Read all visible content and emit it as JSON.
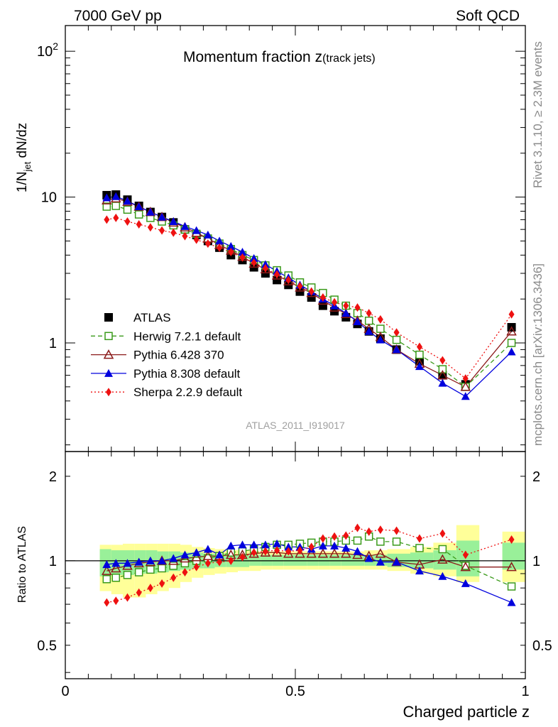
{
  "header": {
    "left": "7000 GeV pp",
    "right": "Soft QCD"
  },
  "side_labels": {
    "rivet": "Rivet 3.1.10, ≥ 2.3M events",
    "mcplots": "mcplots.cern.ch [arXiv:1306.3436]"
  },
  "chart_data": [
    {
      "type": "scatter",
      "panel": "main",
      "title": "Momentum fraction z(track jets)",
      "watermark": "ATLAS_2011_I919017",
      "ylabel": "1/N_jet dN/dz",
      "ylim": [
        0.18,
        150
      ],
      "yscale": "log",
      "xlim": [
        0,
        1
      ],
      "legend_position": "bottom-left",
      "yticks": [
        {
          "v": 1,
          "label": "1"
        },
        {
          "v": 10,
          "label": "10"
        },
        {
          "v": 100,
          "label": "10^2"
        }
      ],
      "x": [
        0.09,
        0.11,
        0.135,
        0.16,
        0.185,
        0.21,
        0.235,
        0.26,
        0.285,
        0.31,
        0.335,
        0.36,
        0.385,
        0.41,
        0.435,
        0.46,
        0.485,
        0.51,
        0.535,
        0.56,
        0.585,
        0.61,
        0.635,
        0.66,
        0.685,
        0.72,
        0.77,
        0.82,
        0.87,
        0.97
      ],
      "series": [
        {
          "name": "ATLAS",
          "color": "#000000",
          "marker": "square-filled",
          "line": "none",
          "values": [
            10.3,
            10.4,
            9.6,
            8.7,
            7.9,
            7.3,
            6.7,
            6.0,
            5.5,
            5.0,
            4.5,
            4.0,
            3.7,
            3.3,
            3.0,
            2.7,
            2.5,
            2.25,
            2.05,
            1.8,
            1.65,
            1.5,
            1.35,
            1.2,
            1.07,
            0.9,
            0.75,
            0.6,
            0.52,
            1.28
          ]
        },
        {
          "name": "Herwig 7.2.1 default",
          "color": "#3a9a1a",
          "marker": "square-open",
          "line": "dashed",
          "values": [
            8.6,
            8.7,
            8.2,
            7.6,
            7.2,
            6.8,
            6.4,
            6.0,
            5.6,
            5.2,
            4.8,
            4.4,
            4.0,
            3.7,
            3.4,
            3.15,
            2.9,
            2.6,
            2.4,
            2.2,
            1.98,
            1.8,
            1.6,
            1.42,
            1.25,
            1.05,
            0.83,
            0.66,
            0.5,
            1.0
          ]
        },
        {
          "name": "Pythia 6.428 370",
          "color": "#8b1a1a",
          "marker": "triangle-open",
          "line": "solid",
          "values": [
            9.5,
            9.8,
            9.3,
            8.6,
            7.9,
            7.3,
            6.7,
            6.2,
            5.7,
            5.2,
            4.7,
            4.3,
            3.9,
            3.5,
            3.2,
            2.9,
            2.65,
            2.4,
            2.2,
            1.95,
            1.75,
            1.58,
            1.42,
            1.25,
            1.1,
            0.9,
            0.72,
            0.6,
            0.5,
            1.2
          ]
        },
        {
          "name": "Pythia 8.308 default",
          "color": "#0000dd",
          "marker": "triangle-filled",
          "line": "solid",
          "values": [
            9.9,
            10.1,
            9.4,
            8.6,
            7.9,
            7.3,
            6.8,
            6.3,
            5.9,
            5.5,
            5.0,
            4.6,
            4.2,
            3.8,
            3.45,
            3.1,
            2.8,
            2.5,
            2.25,
            2.0,
            1.8,
            1.6,
            1.4,
            1.2,
            1.05,
            0.9,
            0.69,
            0.53,
            0.43,
            0.87
          ]
        },
        {
          "name": "Sherpa 2.2.9 default",
          "color": "#ee1111",
          "marker": "diamond-filled",
          "line": "dotted",
          "values": [
            7.0,
            7.2,
            6.8,
            6.5,
            6.2,
            5.9,
            5.7,
            5.4,
            5.1,
            4.8,
            4.5,
            4.2,
            3.85,
            3.55,
            3.25,
            2.95,
            2.7,
            2.45,
            2.25,
            2.05,
            1.9,
            1.8,
            1.75,
            1.6,
            1.45,
            1.18,
            0.94,
            0.76,
            0.57,
            1.57
          ]
        }
      ]
    },
    {
      "type": "scatter",
      "panel": "ratio",
      "ylabel": "Ratio to ATLAS",
      "xlabel": "Charged particle z",
      "ylim": [
        0.38,
        2.45
      ],
      "yscale": "log",
      "xlim": [
        0,
        1
      ],
      "yticks": [
        {
          "v": 0.5,
          "label": "0.5"
        },
        {
          "v": 1,
          "label": "1"
        },
        {
          "v": 2,
          "label": "2"
        }
      ],
      "xticks": [
        {
          "v": 0,
          "label": "0"
        },
        {
          "v": 0.5,
          "label": "0.5"
        },
        {
          "v": 1,
          "label": "1"
        }
      ],
      "bands": [
        {
          "x0": 0.075,
          "x1": 0.1,
          "g": [
            0.88,
            1.1
          ],
          "y": [
            0.78,
            1.14
          ]
        },
        {
          "x0": 0.1,
          "x1": 0.125,
          "g": [
            0.89,
            1.09
          ],
          "y": [
            0.76,
            1.14
          ]
        },
        {
          "x0": 0.125,
          "x1": 0.15,
          "g": [
            0.89,
            1.09
          ],
          "y": [
            0.74,
            1.15
          ]
        },
        {
          "x0": 0.15,
          "x1": 0.175,
          "g": [
            0.9,
            1.09
          ],
          "y": [
            0.74,
            1.15
          ]
        },
        {
          "x0": 0.175,
          "x1": 0.2,
          "g": [
            0.9,
            1.09
          ],
          "y": [
            0.76,
            1.15
          ]
        },
        {
          "x0": 0.2,
          "x1": 0.225,
          "g": [
            0.91,
            1.08
          ],
          "y": [
            0.78,
            1.15
          ]
        },
        {
          "x0": 0.225,
          "x1": 0.25,
          "g": [
            0.92,
            1.08
          ],
          "y": [
            0.8,
            1.15
          ]
        },
        {
          "x0": 0.25,
          "x1": 0.275,
          "g": [
            0.93,
            1.07
          ],
          "y": [
            0.84,
            1.14
          ]
        },
        {
          "x0": 0.275,
          "x1": 0.3,
          "g": [
            0.94,
            1.07
          ],
          "y": [
            0.87,
            1.12
          ]
        },
        {
          "x0": 0.3,
          "x1": 0.325,
          "g": [
            0.94,
            1.06
          ],
          "y": [
            0.89,
            1.11
          ]
        },
        {
          "x0": 0.325,
          "x1": 0.35,
          "g": [
            0.95,
            1.06
          ],
          "y": [
            0.9,
            1.1
          ]
        },
        {
          "x0": 0.35,
          "x1": 0.375,
          "g": [
            0.95,
            1.05
          ],
          "y": [
            0.91,
            1.09
          ]
        },
        {
          "x0": 0.375,
          "x1": 0.4,
          "g": [
            0.95,
            1.05
          ],
          "y": [
            0.92,
            1.09
          ]
        },
        {
          "x0": 0.4,
          "x1": 0.425,
          "g": [
            0.96,
            1.05
          ],
          "y": [
            0.92,
            1.08
          ]
        },
        {
          "x0": 0.425,
          "x1": 0.45,
          "g": [
            0.96,
            1.05
          ],
          "y": [
            0.93,
            1.08
          ]
        },
        {
          "x0": 0.45,
          "x1": 0.475,
          "g": [
            0.96,
            1.05
          ],
          "y": [
            0.93,
            1.08
          ]
        },
        {
          "x0": 0.475,
          "x1": 0.5,
          "g": [
            0.96,
            1.05
          ],
          "y": [
            0.93,
            1.08
          ]
        },
        {
          "x0": 0.5,
          "x1": 0.525,
          "g": [
            0.96,
            1.05
          ],
          "y": [
            0.93,
            1.08
          ]
        },
        {
          "x0": 0.525,
          "x1": 0.55,
          "g": [
            0.96,
            1.05
          ],
          "y": [
            0.93,
            1.08
          ]
        },
        {
          "x0": 0.55,
          "x1": 0.575,
          "g": [
            0.96,
            1.05
          ],
          "y": [
            0.93,
            1.08
          ]
        },
        {
          "x0": 0.575,
          "x1": 0.6,
          "g": [
            0.96,
            1.05
          ],
          "y": [
            0.93,
            1.08
          ]
        },
        {
          "x0": 0.6,
          "x1": 0.625,
          "g": [
            0.96,
            1.05
          ],
          "y": [
            0.93,
            1.08
          ]
        },
        {
          "x0": 0.625,
          "x1": 0.65,
          "g": [
            0.96,
            1.05
          ],
          "y": [
            0.93,
            1.08
          ]
        },
        {
          "x0": 0.65,
          "x1": 0.675,
          "g": [
            0.96,
            1.05
          ],
          "y": [
            0.93,
            1.09
          ]
        },
        {
          "x0": 0.675,
          "x1": 0.7,
          "g": [
            0.96,
            1.05
          ],
          "y": [
            0.93,
            1.09
          ]
        },
        {
          "x0": 0.7,
          "x1": 0.75,
          "g": [
            0.95,
            1.06
          ],
          "y": [
            0.92,
            1.1
          ]
        },
        {
          "x0": 0.75,
          "x1": 0.8,
          "g": [
            0.94,
            1.07
          ],
          "y": [
            0.9,
            1.12
          ]
        },
        {
          "x0": 0.8,
          "x1": 0.85,
          "g": [
            0.93,
            1.09
          ],
          "y": [
            0.88,
            1.16
          ]
        },
        {
          "x0": 0.85,
          "x1": 0.9,
          "g": [
            0.88,
            1.18
          ],
          "y": [
            0.84,
            1.34
          ]
        },
        {
          "x0": 0.95,
          "x1": 1.0,
          "g": [
            0.93,
            1.16
          ],
          "y": [
            0.84,
            1.27
          ]
        }
      ],
      "series": [
        {
          "name": "Herwig 7.2.1 default",
          "color": "#3a9a1a",
          "marker": "square-open",
          "line": "dashed",
          "values": [
            0.86,
            0.87,
            0.89,
            0.91,
            0.93,
            0.94,
            0.96,
            0.98,
            1.0,
            1.02,
            1.04,
            1.07,
            1.08,
            1.1,
            1.12,
            1.14,
            1.14,
            1.15,
            1.16,
            1.17,
            1.17,
            1.18,
            1.18,
            1.22,
            1.17,
            1.17,
            1.11,
            1.1,
            0.96,
            0.81
          ]
        },
        {
          "name": "Pythia 6.428 370",
          "color": "#8b1a1a",
          "marker": "triangle-open",
          "line": "solid",
          "values": [
            0.92,
            0.94,
            0.96,
            0.98,
            0.99,
            1.0,
            1.0,
            1.02,
            1.03,
            1.04,
            1.04,
            1.05,
            1.05,
            1.06,
            1.07,
            1.07,
            1.06,
            1.06,
            1.06,
            1.06,
            1.06,
            1.06,
            1.05,
            1.04,
            1.06,
            0.99,
            0.97,
            1.01,
            0.95,
            0.95
          ]
        },
        {
          "name": "Pythia 8.308 default",
          "color": "#0000dd",
          "marker": "triangle-filled",
          "line": "solid",
          "values": [
            0.97,
            0.98,
            0.98,
            0.99,
            1.0,
            1.0,
            1.02,
            1.05,
            1.07,
            1.1,
            1.05,
            1.13,
            1.14,
            1.14,
            1.14,
            1.15,
            1.12,
            1.12,
            1.1,
            1.13,
            1.13,
            1.11,
            1.08,
            1.02,
            0.99,
            0.99,
            0.92,
            0.88,
            0.83,
            0.71
          ]
        },
        {
          "name": "Sherpa 2.2.9 default",
          "color": "#ee1111",
          "marker": "diamond-filled",
          "line": "dotted",
          "values": [
            0.71,
            0.72,
            0.74,
            0.77,
            0.8,
            0.83,
            0.87,
            0.91,
            0.95,
            0.98,
            0.99,
            1.0,
            1.03,
            1.07,
            1.08,
            1.09,
            1.08,
            1.09,
            1.12,
            1.2,
            1.22,
            1.23,
            1.31,
            1.27,
            1.29,
            1.28,
            1.2,
            1.25,
            1.05,
            1.19
          ]
        }
      ]
    }
  ]
}
